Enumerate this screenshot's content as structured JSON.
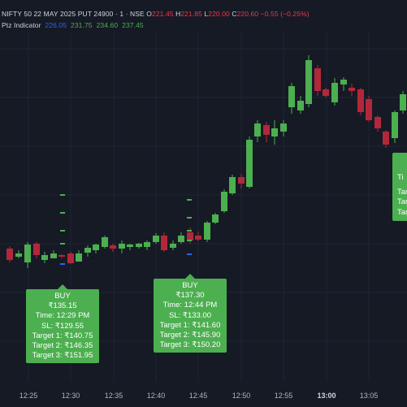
{
  "header": {
    "symbol": "NIFTY 50 22 MAY 2025 PUT 24900 · 1 · NSE",
    "o_label": "O",
    "o_value": "221.45",
    "h_label": "H",
    "h_value": "221.85",
    "l_label": "L",
    "l_value": "220.00",
    "c_label": "C",
    "c_value": "220.60",
    "change": "−0.55 (−0.25%)"
  },
  "indicator": {
    "name": "Ptz Indicator",
    "values": [
      "226.05",
      "231.75",
      "234.60",
      "237.45"
    ],
    "value_colors": [
      "#2962ff",
      "#4caf50",
      "#4caf50",
      "#4caf50"
    ]
  },
  "signals": [
    {
      "lines": [
        "BUY",
        "₹135.15",
        "Time: 12:29 PM",
        "SL: ₹129.55",
        "Target 1: ₹140.75",
        "Target 2: ₹146.35",
        "Target 3: ₹151.95"
      ]
    },
    {
      "lines": [
        "BUY",
        "₹137.30",
        "Time: 12:44 PM",
        "SL: ₹133.00",
        "Target 1: ₹141.60",
        "Target 2: ₹145.90",
        "Target 3: ₹150.20"
      ]
    },
    {
      "lines": [
        "Ti",
        "",
        "Targ",
        "Targ",
        "Targ"
      ]
    }
  ],
  "time_axis": {
    "labels": [
      "12:25",
      "12:30",
      "12:35",
      "12:40",
      "12:45",
      "12:50",
      "12:55",
      "13:00",
      "13:05"
    ],
    "bold_label": "13:00"
  },
  "colors": {
    "background": "#161a25",
    "bull": "#4caf50",
    "bear": "#b2283a",
    "signal_box": "#4caf50",
    "marker_blue": "#2962ff"
  }
}
